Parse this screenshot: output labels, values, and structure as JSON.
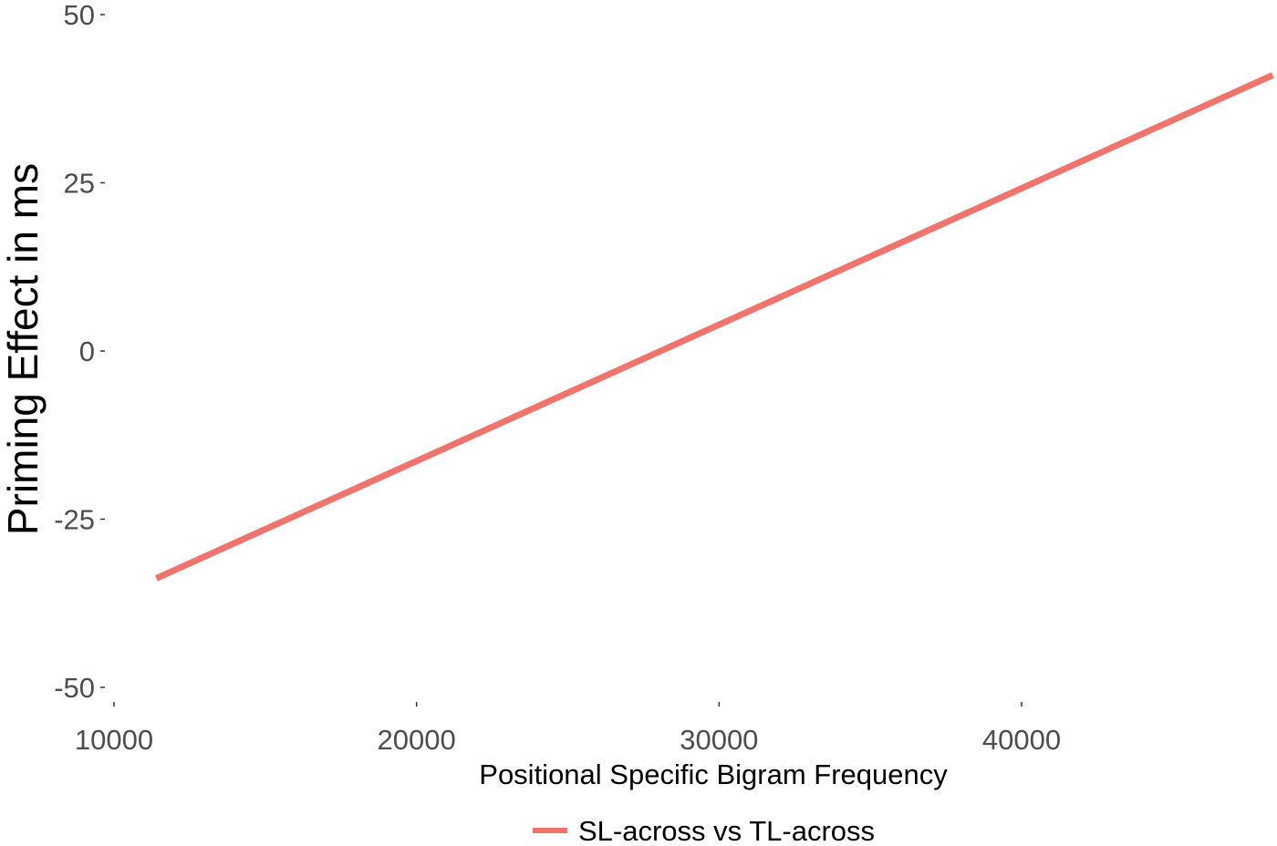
{
  "chart_data": {
    "type": "line",
    "title": "",
    "xlabel": "Positional Specific Bigram Frequency",
    "ylabel": "Priming Effect in ms",
    "xlim": [
      8600,
      48300
    ],
    "ylim": [
      -54,
      51
    ],
    "x_ticks": [
      10000,
      20000,
      30000,
      40000
    ],
    "x_tick_labels": [
      "10000",
      "20000",
      "30000",
      "40000"
    ],
    "y_ticks": [
      50,
      25,
      0,
      -25,
      -50
    ],
    "y_tick_labels": [
      "50",
      "25",
      "0",
      "-25",
      "-50"
    ],
    "grid": false,
    "legend_position": "bottom",
    "series": [
      {
        "name": "SL-across vs TL-across",
        "color": "#f0746e",
        "x": [
          11400,
          48300
        ],
        "y": [
          -33.8,
          41.0
        ]
      }
    ]
  }
}
